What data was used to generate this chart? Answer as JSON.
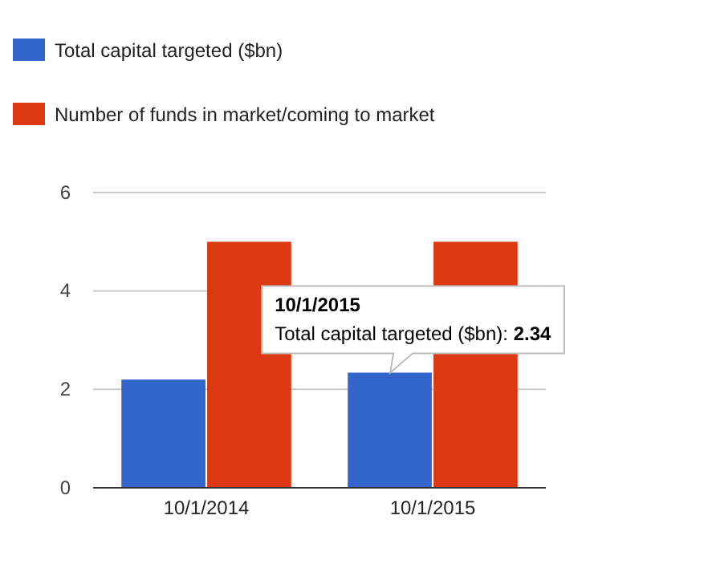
{
  "chart_data": {
    "type": "bar",
    "categories": [
      "10/1/2014",
      "10/1/2015"
    ],
    "series": [
      {
        "name": "Total capital targeted ($bn)",
        "color": "#3366cc",
        "values": [
          2.2,
          2.34
        ]
      },
      {
        "name": "Number of funds in market/coming to market",
        "color": "#dc3912",
        "values": [
          5,
          5
        ]
      }
    ],
    "ylim": [
      0,
      6
    ],
    "yticks": [
      0,
      2,
      4,
      6
    ],
    "grid": "y",
    "legend": "top",
    "annotations": [
      {
        "text": "10/1/2015\nTotal capital targeted ($bn): 2.34",
        "x": "10/1/2015",
        "y": 2.34
      }
    ]
  }
}
